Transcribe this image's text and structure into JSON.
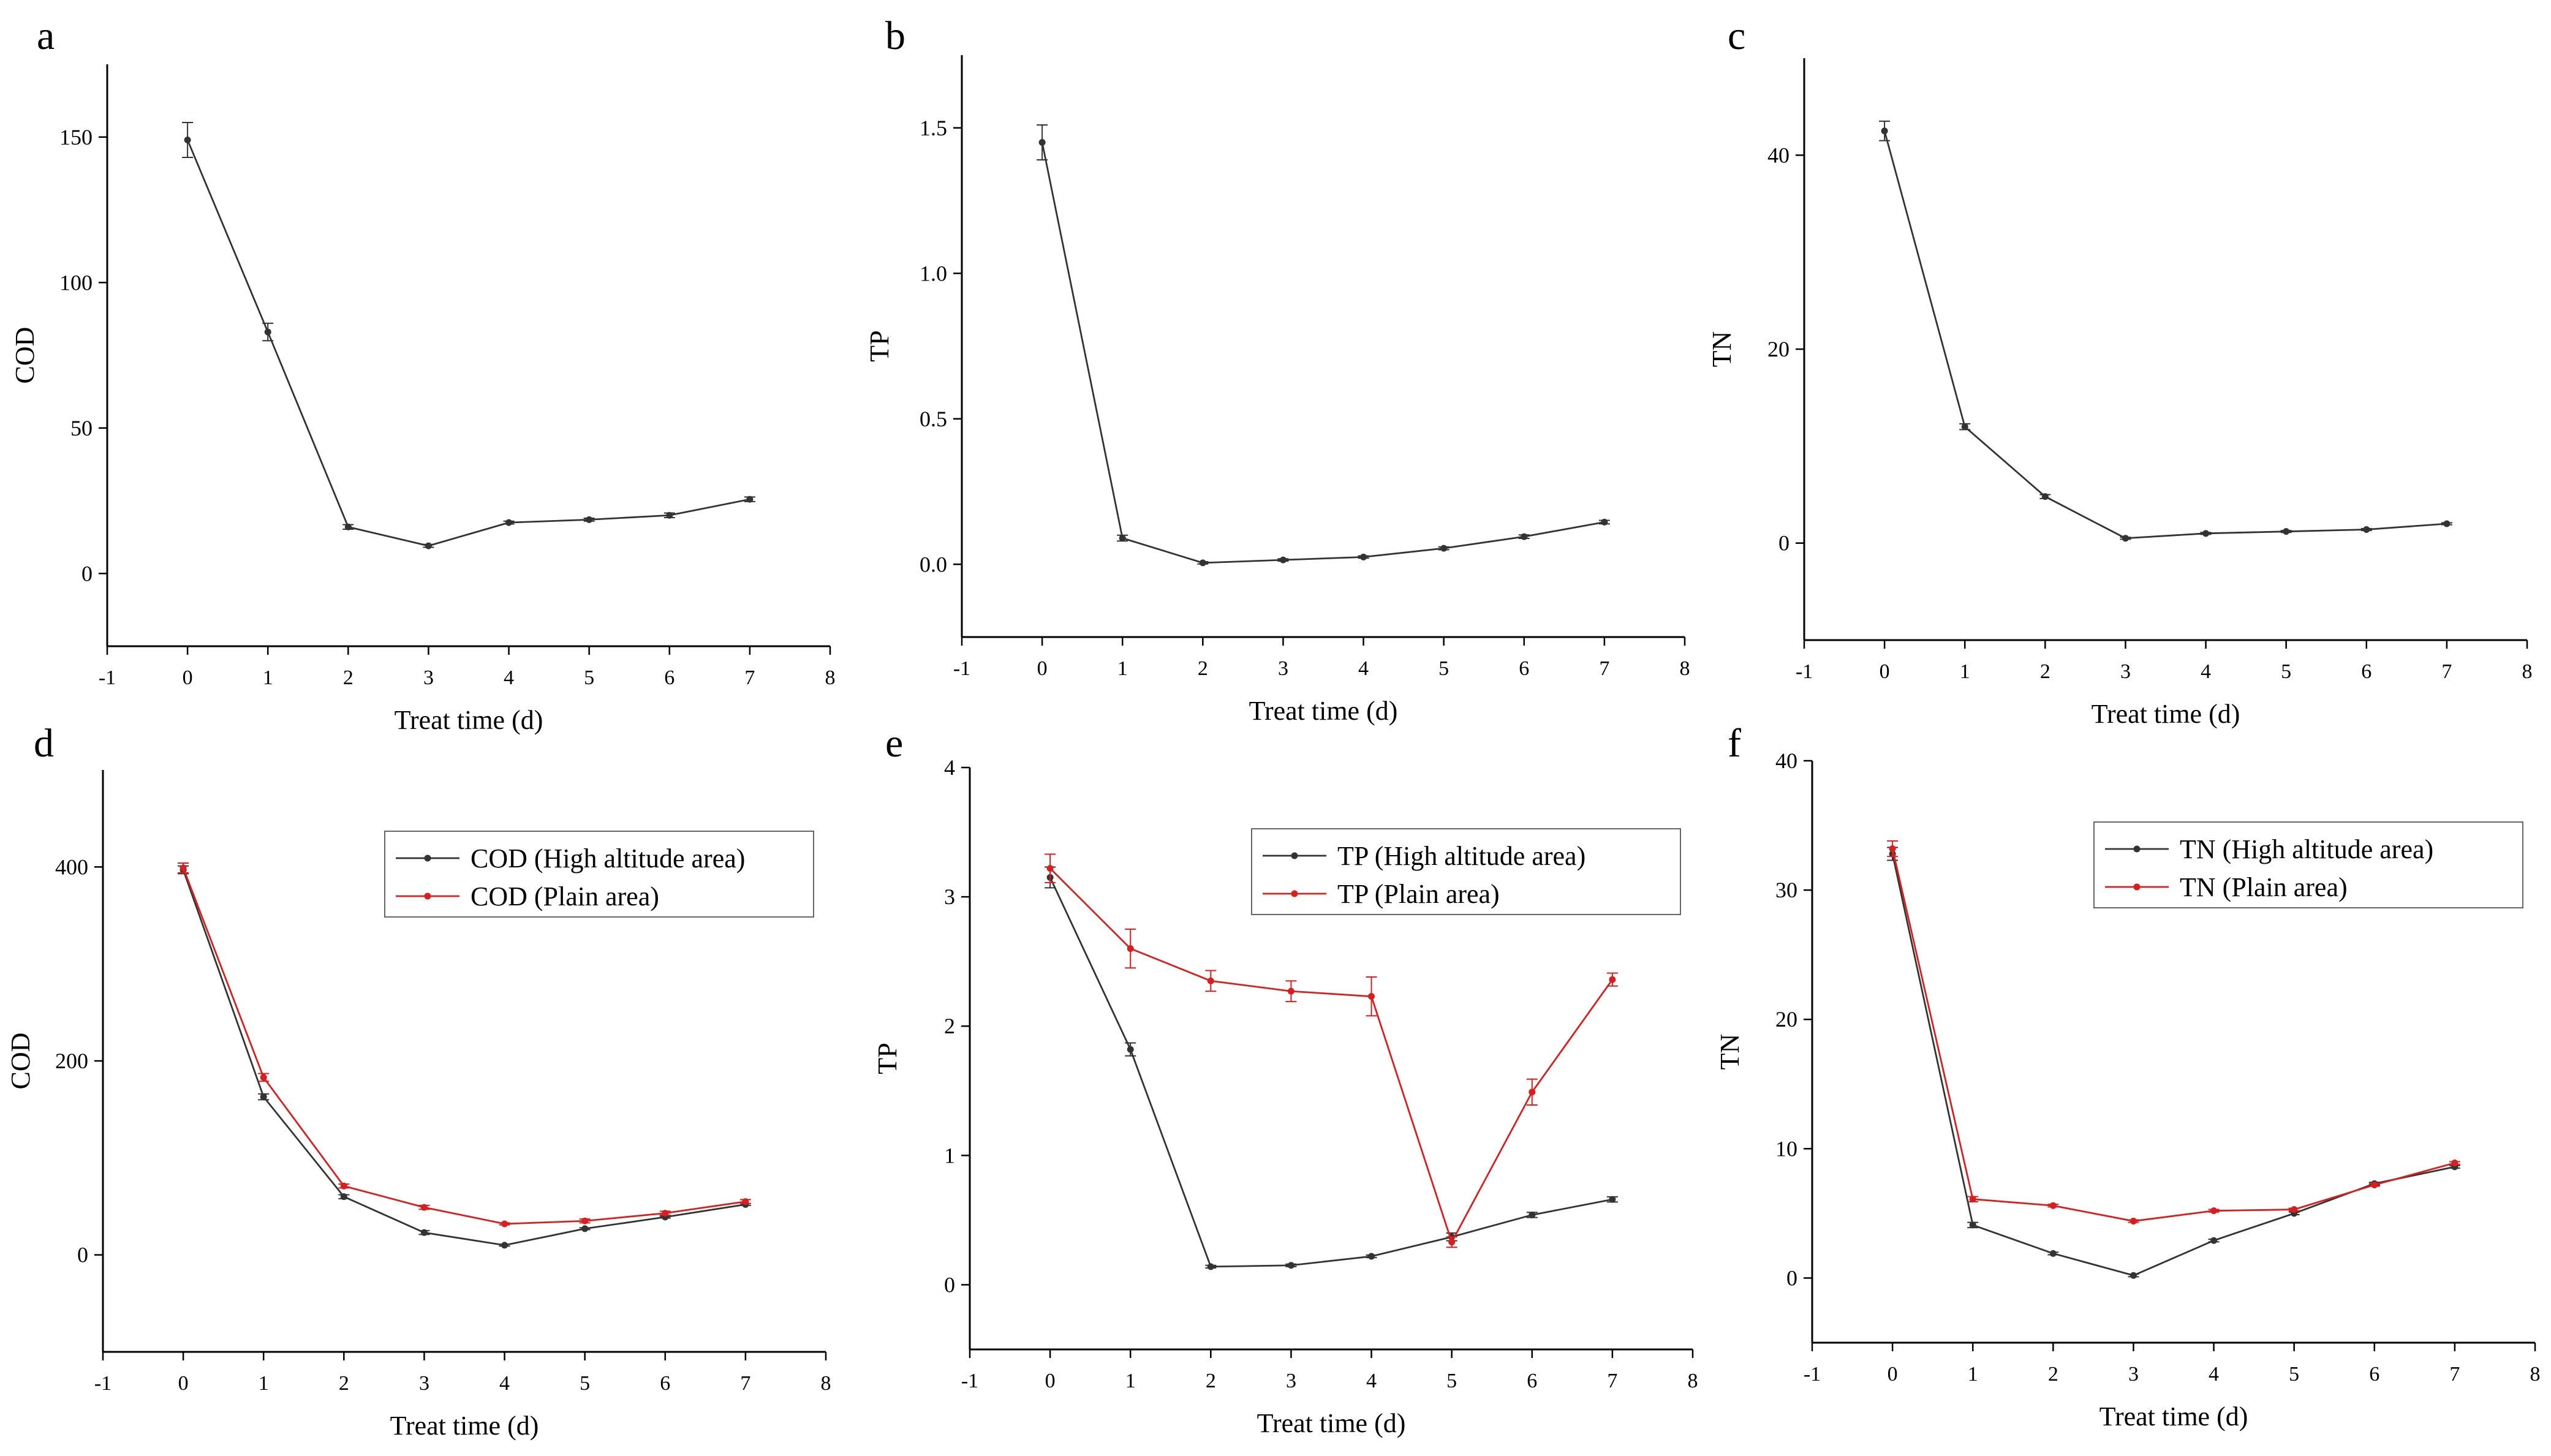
{
  "colors": {
    "high_altitude": "#333333",
    "plain": "#d62020",
    "axis": "#000000",
    "legend_border": "#666666"
  },
  "chart_data": [
    {
      "id": "a",
      "type": "line",
      "panel_label": "a",
      "xlabel": "Treat time (d)",
      "ylabel": "COD",
      "xlim": [
        -1,
        8
      ],
      "ylim": [
        -25,
        175
      ],
      "xticks": [
        -1,
        0,
        1,
        2,
        3,
        4,
        5,
        6,
        7,
        8
      ],
      "yticks": [
        0,
        50,
        100,
        150
      ],
      "legend": null,
      "series": [
        {
          "name": "",
          "color": "#333333",
          "x": [
            0,
            1,
            2,
            3,
            4,
            5,
            6,
            7
          ],
          "y": [
            149,
            83,
            16,
            9.5,
            17.5,
            18.5,
            20,
            25.5
          ],
          "err": [
            6,
            3,
            0.8,
            0.5,
            0.5,
            0.5,
            0.8,
            0.8
          ]
        }
      ]
    },
    {
      "id": "b",
      "type": "line",
      "panel_label": "b",
      "xlabel": "Treat time (d)",
      "ylabel": "TP",
      "xlim": [
        -1,
        8
      ],
      "ylim": [
        -0.25,
        1.75
      ],
      "xticks": [
        -1,
        0,
        1,
        2,
        3,
        4,
        5,
        6,
        7,
        8
      ],
      "yticks": [
        "0.0",
        "0.5",
        "1.0",
        "1.5"
      ],
      "legend": null,
      "series": [
        {
          "name": "",
          "color": "#333333",
          "x": [
            0,
            1,
            2,
            3,
            4,
            5,
            6,
            7
          ],
          "y": [
            1.45,
            0.09,
            0.005,
            0.015,
            0.025,
            0.055,
            0.095,
            0.145
          ],
          "err": [
            0.06,
            0.01,
            0.004,
            0.004,
            0.004,
            0.005,
            0.006,
            0.006
          ]
        }
      ]
    },
    {
      "id": "c",
      "type": "line",
      "panel_label": "c",
      "xlabel": "Treat time (d)",
      "ylabel": "TN",
      "xlim": [
        -1,
        8
      ],
      "ylim": [
        -10,
        50
      ],
      "xticks": [
        -1,
        0,
        1,
        2,
        3,
        4,
        5,
        6,
        7,
        8
      ],
      "yticks": [
        0,
        20,
        40
      ],
      "legend": null,
      "series": [
        {
          "name": "",
          "color": "#333333",
          "x": [
            0,
            1,
            2,
            3,
            4,
            5,
            6,
            7
          ],
          "y": [
            42.5,
            12,
            4.8,
            0.5,
            1,
            1.2,
            1.4,
            2
          ],
          "err": [
            1,
            0.3,
            0.2,
            0.1,
            0.1,
            0.1,
            0.1,
            0.1
          ]
        }
      ]
    },
    {
      "id": "d",
      "type": "line",
      "panel_label": "d",
      "xlabel": "Treat time (d)",
      "ylabel": "COD",
      "xlim": [
        -1,
        8
      ],
      "ylim": [
        -100,
        500
      ],
      "xticks": [
        -1,
        0,
        1,
        2,
        3,
        4,
        5,
        6,
        7,
        8
      ],
      "yticks": [
        0,
        200,
        400
      ],
      "legend": "top-right",
      "series": [
        {
          "name": "COD (High altitude area)",
          "color": "#333333",
          "x": [
            0,
            1,
            2,
            3,
            4,
            5,
            6,
            7
          ],
          "y": [
            397,
            163,
            60,
            23,
            10,
            27,
            39,
            52
          ],
          "err": [
            4,
            3,
            2,
            2,
            1,
            1,
            1,
            1
          ]
        },
        {
          "name": "COD (Plain area)",
          "color": "#d62020",
          "x": [
            0,
            1,
            2,
            3,
            4,
            5,
            6,
            7
          ],
          "y": [
            399,
            183,
            71,
            49,
            32,
            35,
            43,
            55
          ],
          "err": [
            5,
            4,
            2,
            2,
            1,
            2,
            2,
            2
          ]
        }
      ]
    },
    {
      "id": "e",
      "type": "line",
      "panel_label": "e",
      "xlabel": "Treat time (d)",
      "ylabel": "TP",
      "xlim": [
        -1,
        8
      ],
      "ylim": [
        -0.5,
        4
      ],
      "xticks": [
        -1,
        0,
        1,
        2,
        3,
        4,
        5,
        6,
        7,
        8
      ],
      "yticks": [
        0,
        1,
        2,
        3,
        4
      ],
      "legend": "top-right",
      "series": [
        {
          "name": "TP (High altitude area)",
          "color": "#333333",
          "x": [
            0,
            1,
            2,
            3,
            4,
            5,
            6,
            7
          ],
          "y": [
            3.15,
            1.82,
            0.14,
            0.15,
            0.22,
            0.37,
            0.54,
            0.66
          ],
          "err": [
            0.08,
            0.05,
            0.01,
            0.01,
            0.01,
            0.03,
            0.02,
            0.02
          ]
        },
        {
          "name": "TP (Plain area)",
          "color": "#d62020",
          "x": [
            0,
            1,
            2,
            3,
            4,
            5,
            6,
            7
          ],
          "y": [
            3.22,
            2.6,
            2.35,
            2.27,
            2.23,
            0.33,
            1.49,
            2.36
          ],
          "err": [
            0.11,
            0.15,
            0.08,
            0.08,
            0.15,
            0.04,
            0.1,
            0.05
          ]
        }
      ]
    },
    {
      "id": "f",
      "type": "line",
      "panel_label": "f",
      "xlabel": "Treat time (d)",
      "ylabel": "TN",
      "xlim": [
        -1,
        8
      ],
      "ylim": [
        -5,
        40
      ],
      "xticks": [
        -1,
        0,
        1,
        2,
        3,
        4,
        5,
        6,
        7,
        8
      ],
      "yticks": [
        0,
        10,
        20,
        30,
        40
      ],
      "legend": "top-right",
      "series": [
        {
          "name": "TN (High altitude area)",
          "color": "#333333",
          "x": [
            0,
            1,
            2,
            3,
            4,
            5,
            6,
            7
          ],
          "y": [
            32.8,
            4.1,
            1.9,
            0.2,
            2.9,
            5,
            7.3,
            8.6
          ],
          "err": [
            0.5,
            0.2,
            0.1,
            0.1,
            0.1,
            0.1,
            0.1,
            0.1
          ]
        },
        {
          "name": "TN (Plain area)",
          "color": "#d62020",
          "x": [
            0,
            1,
            2,
            3,
            4,
            5,
            6,
            7
          ],
          "y": [
            33.2,
            6.1,
            5.6,
            4.4,
            5.2,
            5.3,
            7.2,
            8.9
          ],
          "err": [
            0.6,
            0.2,
            0.1,
            0.1,
            0.1,
            0.1,
            0.1,
            0.1
          ]
        }
      ]
    }
  ]
}
